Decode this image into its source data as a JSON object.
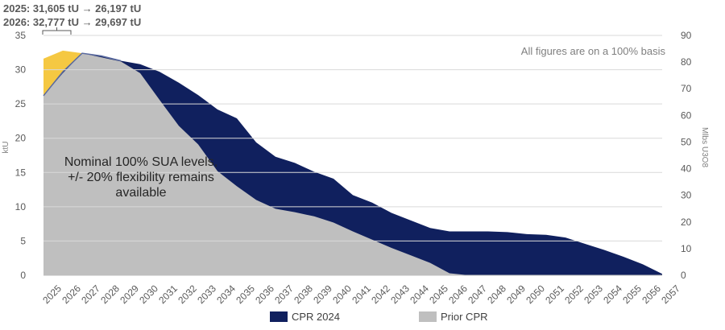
{
  "chart_data": {
    "type": "area",
    "x": [
      "2025",
      "2026",
      "2027",
      "2028",
      "2029",
      "2030",
      "2031",
      "2032",
      "2033",
      "2034",
      "2035",
      "2036",
      "2037",
      "2038",
      "2039",
      "2040",
      "2041",
      "2042",
      "2043",
      "2044",
      "2045",
      "2046",
      "2047",
      "2048",
      "2049",
      "2050",
      "2051",
      "2052",
      "2053",
      "2054",
      "2055",
      "2056",
      "2057"
    ],
    "series": [
      {
        "name": "CPR 2024",
        "color": "#10205e",
        "values": [
          26.2,
          29.7,
          32.4,
          32.0,
          31.3,
          30.8,
          29.7,
          28.1,
          26.3,
          24.2,
          22.9,
          19.4,
          17.3,
          16.4,
          15.1,
          14.1,
          11.7,
          10.6,
          9.1,
          8.0,
          6.9,
          6.4,
          6.4,
          6.4,
          6.3,
          6.0,
          5.9,
          5.5,
          4.6,
          3.7,
          2.7,
          1.6,
          0.2
        ]
      },
      {
        "name": "Prior CPR",
        "color": "#bfbfbf",
        "values": [
          26.2,
          29.5,
          32.4,
          31.8,
          31.2,
          29.5,
          25.6,
          21.8,
          19.1,
          15.2,
          13.0,
          11.0,
          9.7,
          9.2,
          8.6,
          7.7,
          6.4,
          5.2,
          4.0,
          2.9,
          1.8,
          0.3,
          -0.6,
          -0.6,
          -0.6,
          -0.6,
          -1.3,
          -1.8,
          -1.0,
          -1.5,
          -2.0,
          -1.8,
          -2.5
        ]
      }
    ],
    "sua_2025": {
      "from": 31.605,
      "to": 26.197
    },
    "sua_2026": {
      "from": 32.777,
      "to": 29.697
    },
    "y_left": {
      "label": "ktU",
      "ticks": [
        0,
        5,
        10,
        15,
        20,
        25,
        30,
        35
      ],
      "lim": [
        0,
        35
      ]
    },
    "y_right": {
      "label": "Mlbs U3O8",
      "ticks": [
        0,
        10,
        20,
        30,
        40,
        50,
        60,
        70,
        80,
        90
      ],
      "lim": [
        0,
        90
      ]
    },
    "legend": "bottom",
    "sua_color": "#f5c842",
    "texts": {
      "note_line1": "2025: 31,605 tU → 26,197 tU",
      "note_line2": "2026: 32,777 tU → 29,697 tU",
      "basis": "All figures are on a 100% basis",
      "overlay_line1": "Nominal 100% SUA levels,",
      "overlay_line2": "+/- 20% flexibility remains",
      "overlay_line3": "available",
      "y_left_title": "ktU",
      "y_right_title": "Mlbs U3O8"
    }
  }
}
